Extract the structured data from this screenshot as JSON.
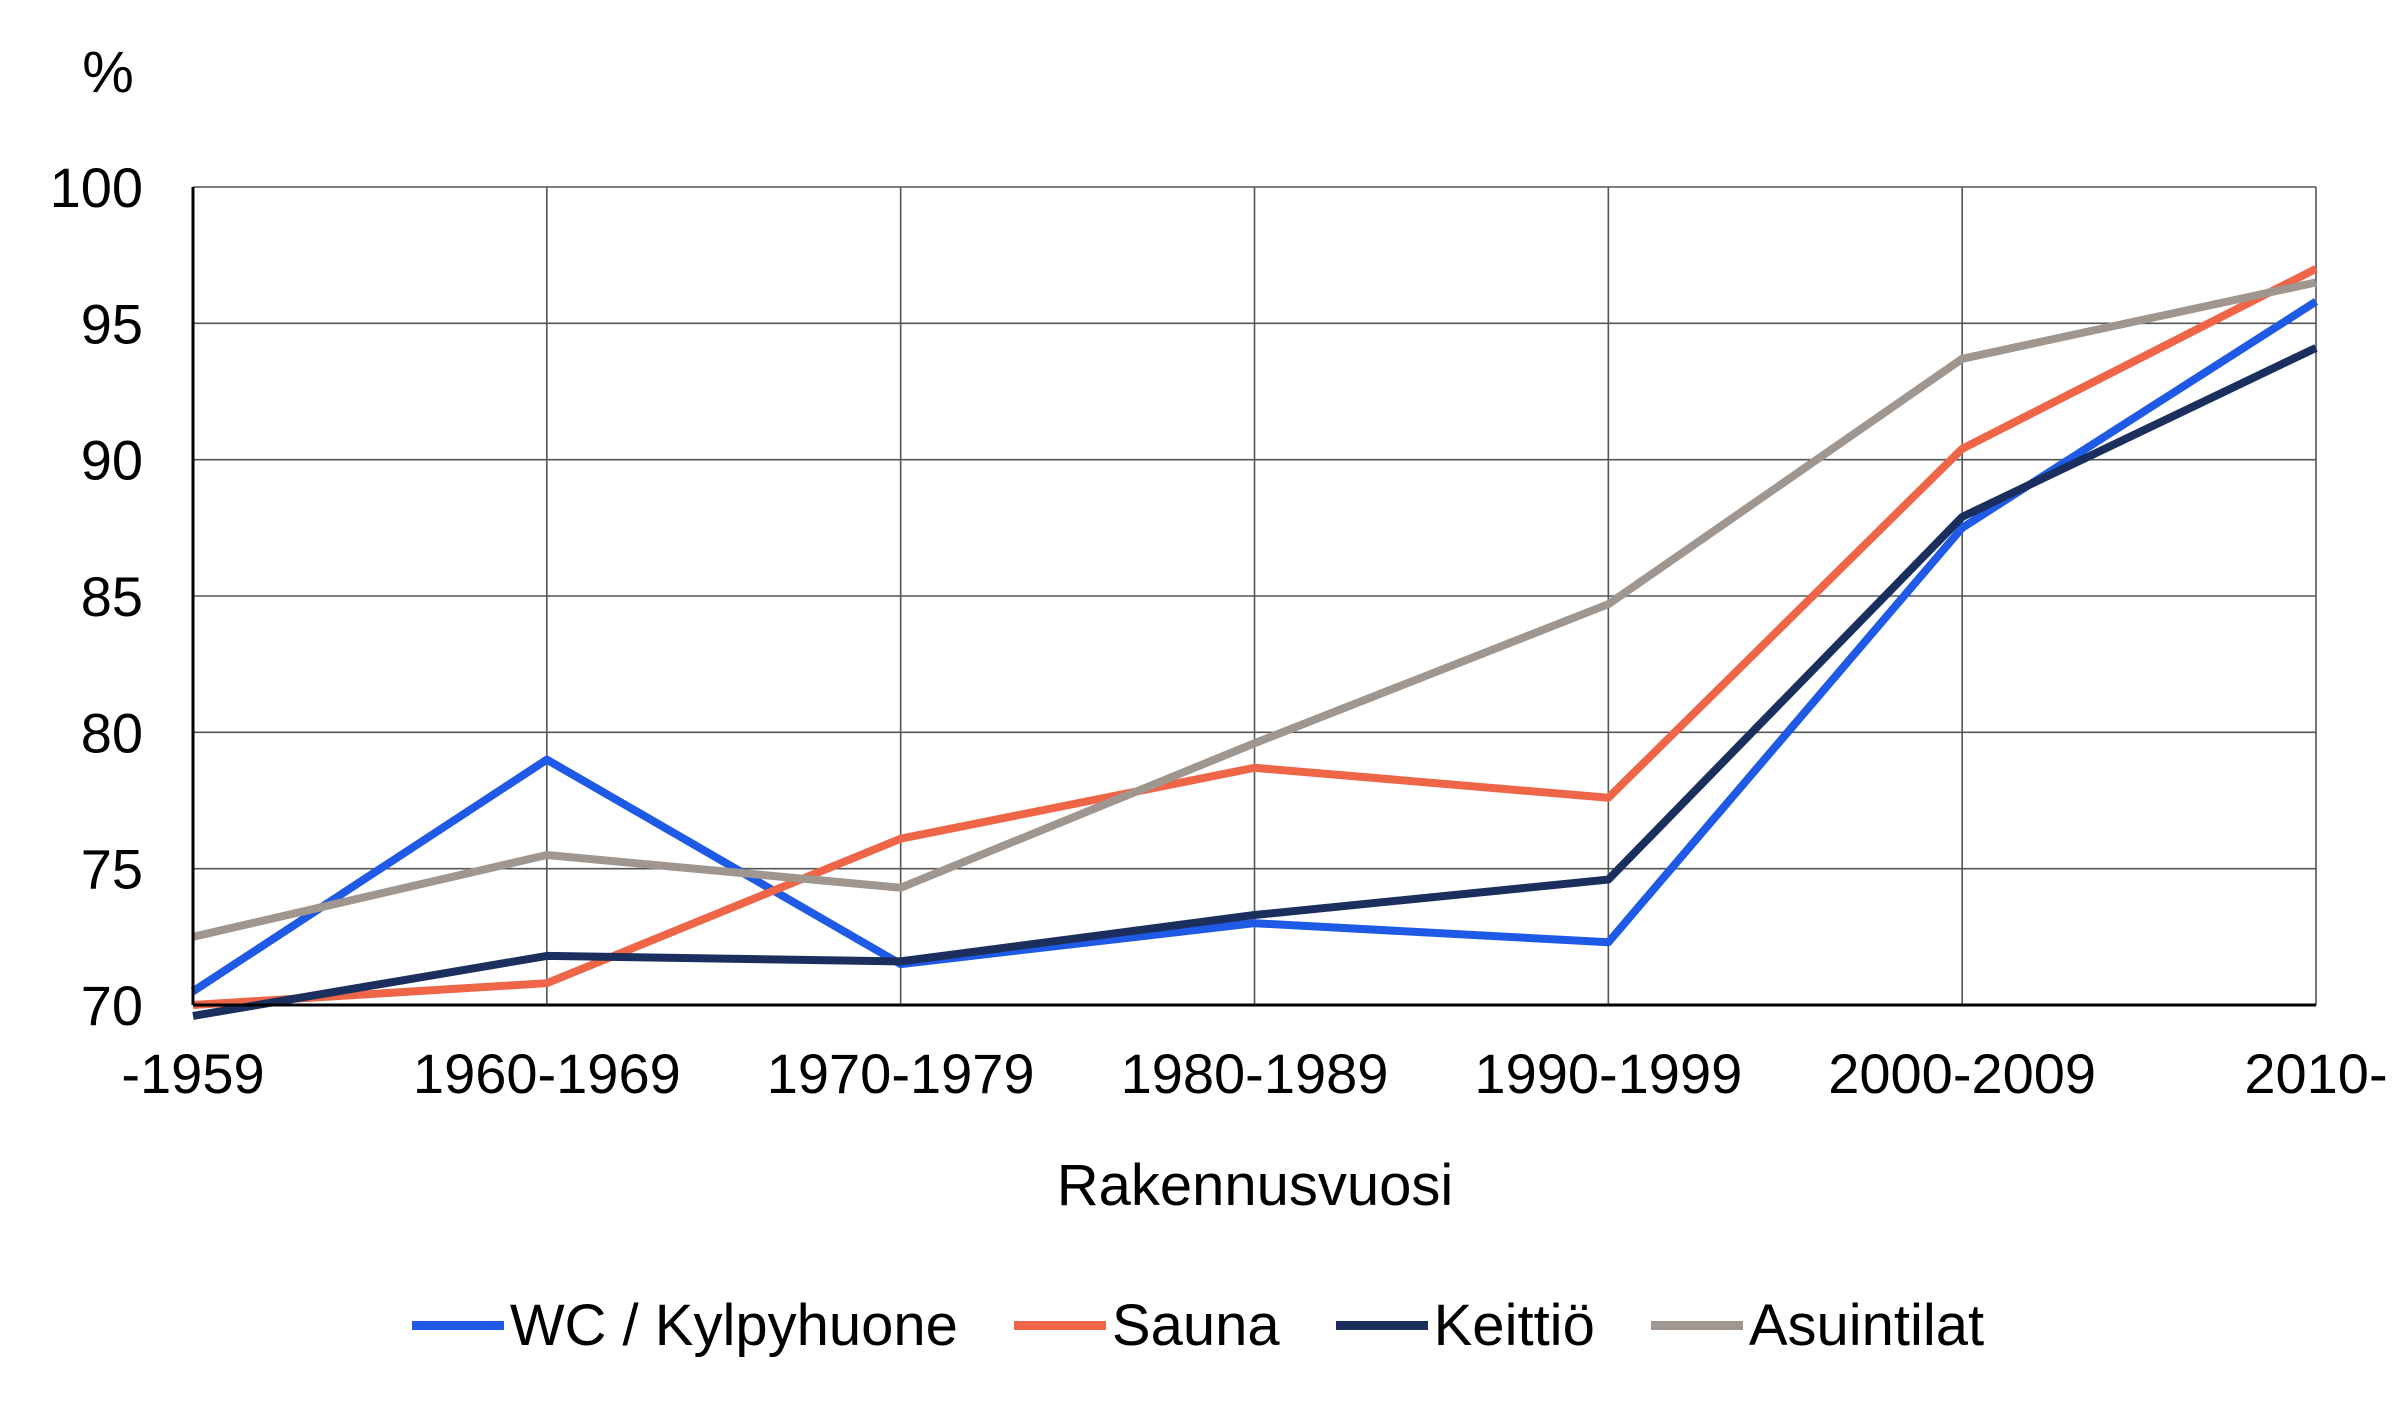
{
  "chart_data": {
    "type": "line",
    "title": "",
    "xlabel": "Rakennusvuosi",
    "ylabel": "%",
    "categories": [
      "-1959",
      "1960-1969",
      "1970-1979",
      "1980-1989",
      "1990-1999",
      "2000-2009",
      "2010-"
    ],
    "ylim": [
      70,
      100
    ],
    "yticks": [
      70,
      75,
      80,
      85,
      90,
      95,
      100
    ],
    "grid": true,
    "legend_position": "bottom",
    "series": [
      {
        "name": "WC / Kylpyhuone",
        "color": "#1f5ae6",
        "values": [
          70.5,
          79.0,
          71.5,
          73.0,
          72.3,
          87.5,
          95.8
        ]
      },
      {
        "name": "Sauna",
        "color": "#ef6548",
        "values": [
          70.0,
          70.8,
          76.1,
          78.7,
          77.6,
          90.4,
          97.0
        ]
      },
      {
        "name": "Keittiö",
        "color": "#1b2f5e",
        "values": [
          69.6,
          71.8,
          71.6,
          73.3,
          74.6,
          87.9,
          94.1
        ]
      },
      {
        "name": "Asuintilat",
        "color": "#a09690",
        "values": [
          72.5,
          75.5,
          74.3,
          79.6,
          84.7,
          93.7,
          96.5
        ]
      }
    ]
  }
}
